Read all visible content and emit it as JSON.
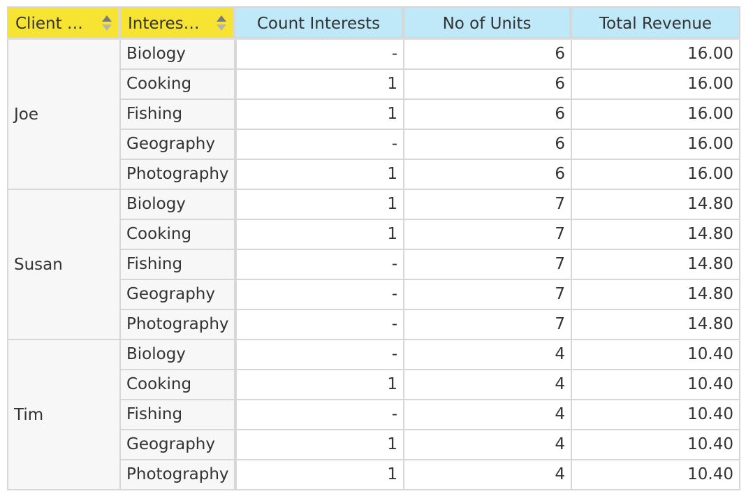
{
  "headers": {
    "row_fields": [
      {
        "label": "Client N..."
      },
      {
        "label": "Interest ..."
      }
    ],
    "measures": [
      "Count Interests",
      "No of Units",
      "Total Revenue"
    ]
  },
  "colors": {
    "row_field_header": "#f7e332",
    "measure_header": "#bfe9f8",
    "row_header_background": "#f7f7f7",
    "grid_line": "#d7d7d7"
  },
  "icons": {
    "sort": "sort-up-down-icon"
  },
  "clients": [
    {
      "name": "Joe",
      "rows": [
        {
          "interest": "Biology",
          "count": "-",
          "units": "6",
          "revenue": "16.00"
        },
        {
          "interest": "Cooking",
          "count": "1",
          "units": "6",
          "revenue": "16.00"
        },
        {
          "interest": "Fishing",
          "count": "1",
          "units": "6",
          "revenue": "16.00"
        },
        {
          "interest": "Geography",
          "count": "-",
          "units": "6",
          "revenue": "16.00"
        },
        {
          "interest": "Photography",
          "count": "1",
          "units": "6",
          "revenue": "16.00"
        }
      ]
    },
    {
      "name": "Susan",
      "rows": [
        {
          "interest": "Biology",
          "count": "1",
          "units": "7",
          "revenue": "14.80"
        },
        {
          "interest": "Cooking",
          "count": "1",
          "units": "7",
          "revenue": "14.80"
        },
        {
          "interest": "Fishing",
          "count": "-",
          "units": "7",
          "revenue": "14.80"
        },
        {
          "interest": "Geography",
          "count": "-",
          "units": "7",
          "revenue": "14.80"
        },
        {
          "interest": "Photography",
          "count": "-",
          "units": "7",
          "revenue": "14.80"
        }
      ]
    },
    {
      "name": "Tim",
      "rows": [
        {
          "interest": "Biology",
          "count": "-",
          "units": "4",
          "revenue": "10.40"
        },
        {
          "interest": "Cooking",
          "count": "1",
          "units": "4",
          "revenue": "10.40"
        },
        {
          "interest": "Fishing",
          "count": "-",
          "units": "4",
          "revenue": "10.40"
        },
        {
          "interest": "Geography",
          "count": "1",
          "units": "4",
          "revenue": "10.40"
        },
        {
          "interest": "Photography",
          "count": "1",
          "units": "4",
          "revenue": "10.40"
        }
      ]
    }
  ]
}
